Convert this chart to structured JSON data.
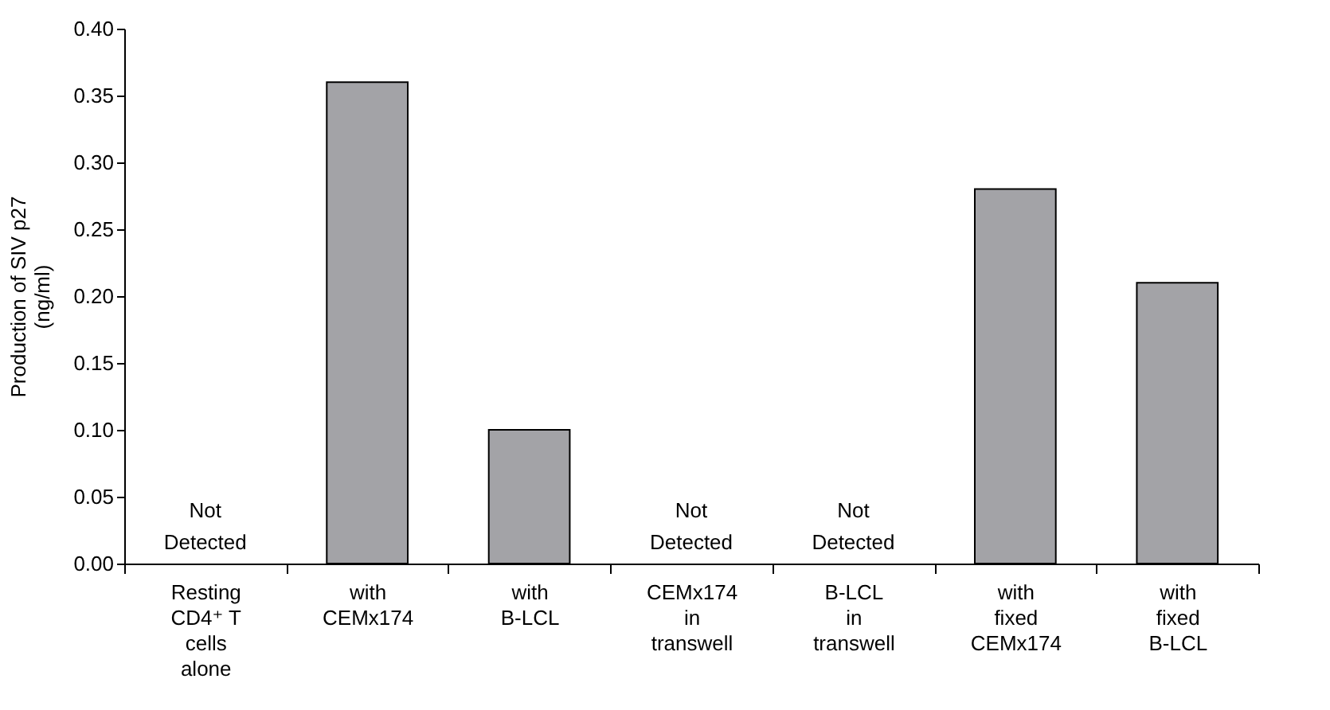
{
  "chart_data": {
    "type": "bar",
    "ylabel": "Production of SIV p27 (ng/ml)",
    "categories": [
      "Resting CD4⁺ T cells alone",
      "with CEMx174",
      "with B-LCL",
      "CEMx174 in transwell",
      "B-LCL in transwell",
      "with fixed CEMx174",
      "with fixed B-LCL"
    ],
    "series": [
      {
        "color": "#a3a3a7",
        "values": [
          null,
          0.36,
          0.1,
          null,
          null,
          0.28,
          0.21
        ]
      }
    ],
    "ylim": [
      0,
      0.4
    ],
    "yticks": [
      {
        "value": 0,
        "label": "0.00"
      },
      {
        "value": 0.05,
        "label": "0.05"
      },
      {
        "value": 0.1,
        "label": "0.10"
      },
      {
        "value": 0.15,
        "label": "0.15"
      },
      {
        "value": 0.2,
        "label": "0.20"
      },
      {
        "value": 0.25,
        "label": "0.25"
      },
      {
        "value": 0.3,
        "label": "0.30"
      },
      {
        "value": 0.35,
        "label": "0.35"
      },
      {
        "value": 0.4,
        "label": "0.40"
      }
    ],
    "grid": false,
    "legend": false,
    "annotations": [
      "Not Detected",
      "Not Detected",
      "Not Detected"
    ]
  }
}
